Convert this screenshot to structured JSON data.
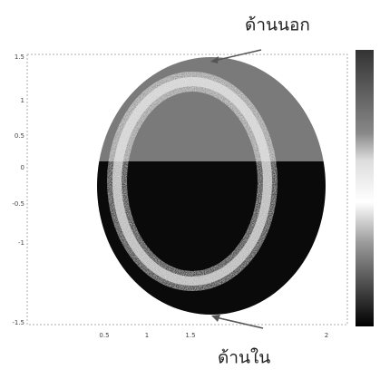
{
  "figure": {
    "annotations": {
      "outer": "ด้านนอก",
      "inner": "ด้านใน"
    },
    "y_tick_labels": [
      "1.5",
      "1",
      "0.5",
      "0",
      "-0.5",
      "-1",
      "-1.5"
    ],
    "x_tick_labels": [
      "0.5",
      "1",
      "1.5",
      "2"
    ]
  }
}
